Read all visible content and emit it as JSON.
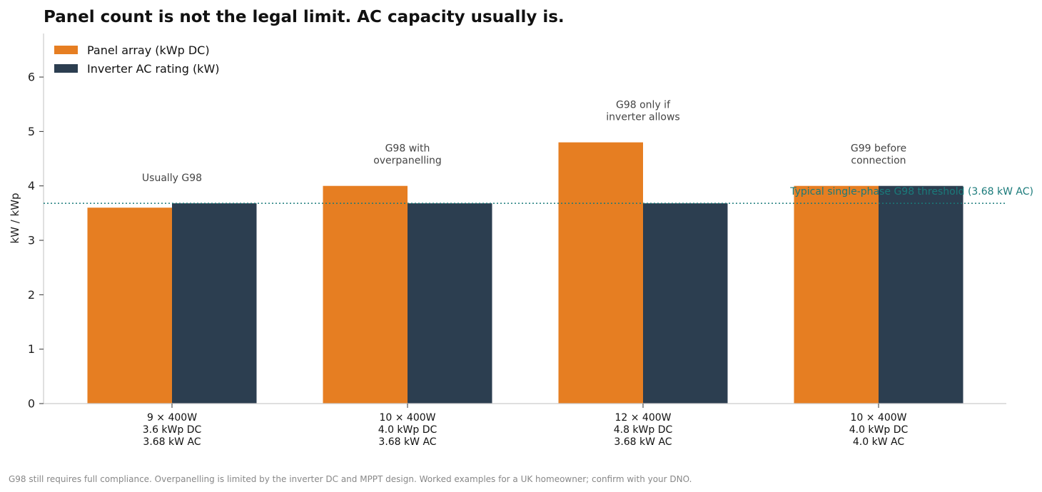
{
  "chart_data": {
    "type": "bar",
    "title": "Panel count is not the legal limit. AC capacity usually is.",
    "xlabel": "",
    "ylabel": "kW / kWp",
    "ylim": [
      0,
      6.8
    ],
    "yticks": [
      "0",
      "1",
      "2",
      "3",
      "4",
      "5",
      "6"
    ],
    "grid": false,
    "legend_position": "top-left",
    "categories": [
      [
        "9 × 400W",
        "3.6 kWp DC",
        "3.68 kW AC"
      ],
      [
        "10 × 400W",
        "4.0 kWp DC",
        "3.68 kW AC"
      ],
      [
        "12 × 400W",
        "4.8 kWp DC",
        "3.68 kW AC"
      ],
      [
        "10 × 400W",
        "4.0 kWp DC",
        "4.0 kW AC"
      ]
    ],
    "series": [
      {
        "name": "Panel array (kWp DC)",
        "color": "#e67e22",
        "values": [
          3.6,
          4.0,
          4.8,
          4.0
        ]
      },
      {
        "name": "Inverter AC rating (kW)",
        "color": "#2c3e50",
        "values": [
          3.68,
          3.68,
          3.68,
          4.0
        ]
      }
    ],
    "annotations": [
      [
        "Usually G98"
      ],
      [
        "G98 with",
        "overpanelling"
      ],
      [
        "G98 only if",
        "inverter allows"
      ],
      [
        "G99 before",
        "connection"
      ]
    ],
    "reference_line": {
      "value": 3.68,
      "label": "Typical single-phase G98 threshold (3.68 kW AC)",
      "color": "#1a7a7a",
      "style": "dotted"
    }
  },
  "footnote": "G98 still requires full compliance. Overpanelling is limited by the inverter DC and MPPT design. Worked examples for a UK homeowner; confirm with your DNO."
}
